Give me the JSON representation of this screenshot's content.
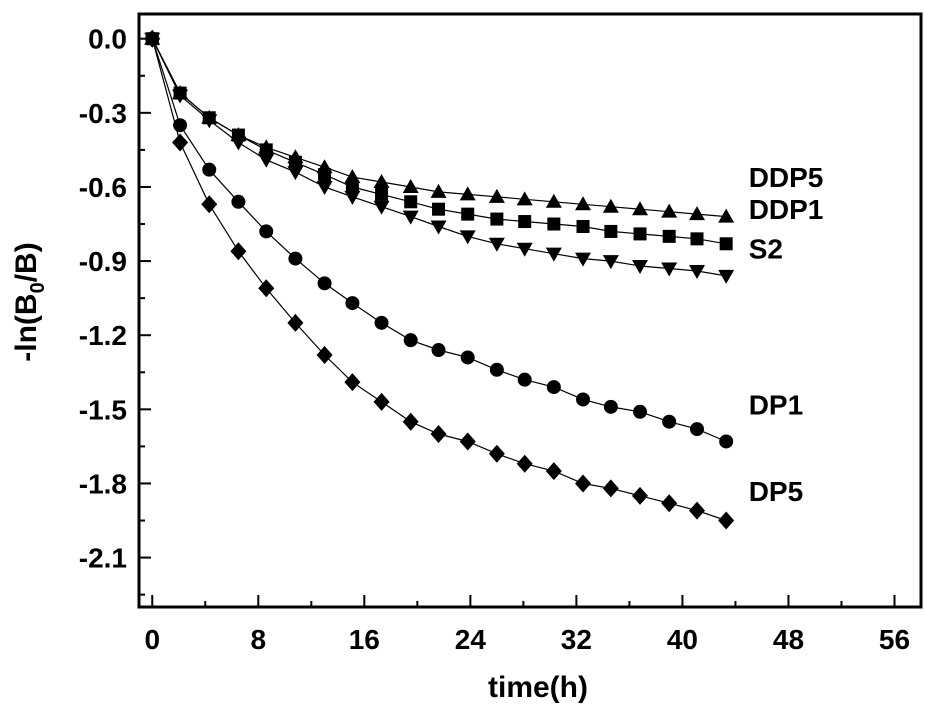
{
  "chart_data": {
    "type": "line",
    "xlabel": "time(h)",
    "ylabel_parts": {
      "prefix": "-ln(B",
      "sub": "0",
      "suffix": "/B)"
    },
    "xlim": [
      -1,
      58
    ],
    "ylim": [
      -2.3,
      0.1
    ],
    "xticks": [
      0,
      8,
      16,
      24,
      32,
      40,
      48,
      56
    ],
    "yticks": [
      0.0,
      -0.3,
      -0.6,
      -0.9,
      -1.2,
      -1.5,
      -1.8,
      -2.1
    ],
    "ytick_labels": [
      "0.0",
      "-0.3",
      "-0.6",
      "-0.9",
      "-1.2",
      "-1.5",
      "-1.8",
      "-2.1"
    ],
    "grid": false,
    "series": [
      {
        "name": "DDP5",
        "marker": "triangle-up",
        "x": [
          0,
          2.1,
          4.3,
          6.5,
          8.6,
          10.8,
          13,
          15.1,
          17.3,
          19.5,
          21.6,
          23.8,
          26,
          28.1,
          30.3,
          32.5,
          34.6,
          36.8,
          39,
          41.1,
          43.3
        ],
        "y": [
          0,
          -0.22,
          -0.32,
          -0.39,
          -0.44,
          -0.48,
          -0.52,
          -0.56,
          -0.58,
          -0.6,
          -0.62,
          -0.63,
          -0.64,
          -0.65,
          -0.66,
          -0.67,
          -0.68,
          -0.69,
          -0.7,
          -0.71,
          -0.72
        ]
      },
      {
        "name": "DDP1",
        "marker": "square",
        "x": [
          0,
          2.1,
          4.3,
          6.5,
          8.6,
          10.8,
          13,
          15.1,
          17.3,
          19.5,
          21.6,
          23.8,
          26,
          28.1,
          30.3,
          32.5,
          34.6,
          36.8,
          39,
          41.1,
          43.3
        ],
        "y": [
          0,
          -0.22,
          -0.32,
          -0.39,
          -0.45,
          -0.5,
          -0.55,
          -0.6,
          -0.63,
          -0.66,
          -0.69,
          -0.71,
          -0.73,
          -0.74,
          -0.75,
          -0.76,
          -0.78,
          -0.79,
          -0.8,
          -0.81,
          -0.83
        ]
      },
      {
        "name": "S2",
        "marker": "triangle-down",
        "x": [
          0,
          2.1,
          4.3,
          6.5,
          8.6,
          10.8,
          13,
          15.1,
          17.3,
          19.5,
          21.6,
          23.8,
          26,
          28.1,
          30.3,
          32.5,
          34.6,
          36.8,
          39,
          41.1,
          43.3
        ],
        "y": [
          0,
          -0.23,
          -0.33,
          -0.42,
          -0.49,
          -0.54,
          -0.6,
          -0.64,
          -0.68,
          -0.72,
          -0.76,
          -0.8,
          -0.83,
          -0.85,
          -0.87,
          -0.89,
          -0.9,
          -0.92,
          -0.93,
          -0.94,
          -0.96
        ]
      },
      {
        "name": "DP1",
        "marker": "circle",
        "x": [
          0,
          2.1,
          4.3,
          6.5,
          8.6,
          10.8,
          13,
          15.1,
          17.3,
          19.5,
          21.6,
          23.8,
          26,
          28.1,
          30.3,
          32.5,
          34.6,
          36.8,
          39,
          41.1,
          43.3
        ],
        "y": [
          0,
          -0.35,
          -0.53,
          -0.66,
          -0.78,
          -0.89,
          -0.99,
          -1.07,
          -1.15,
          -1.22,
          -1.26,
          -1.29,
          -1.34,
          -1.38,
          -1.41,
          -1.46,
          -1.49,
          -1.51,
          -1.55,
          -1.58,
          -1.63
        ]
      },
      {
        "name": "DP5",
        "marker": "diamond",
        "x": [
          0,
          2.1,
          4.3,
          6.5,
          8.6,
          10.8,
          13,
          15.1,
          17.3,
          19.5,
          21.6,
          23.8,
          26,
          28.1,
          30.3,
          32.5,
          34.6,
          36.8,
          39,
          41.1,
          43.3
        ],
        "y": [
          0,
          -0.42,
          -0.67,
          -0.86,
          -1.01,
          -1.15,
          -1.28,
          -1.39,
          -1.47,
          -1.55,
          -1.6,
          -1.63,
          -1.68,
          -1.72,
          -1.75,
          -1.8,
          -1.82,
          -1.85,
          -1.88,
          -1.91,
          -1.95
        ]
      }
    ],
    "series_labels": [
      {
        "text": "DDP5",
        "x": 45,
        "y": -0.56
      },
      {
        "text": "DDP1",
        "x": 45,
        "y": -0.69
      },
      {
        "text": "S2",
        "x": 45,
        "y": -0.85
      },
      {
        "text": "DP1",
        "x": 45,
        "y": -1.48
      },
      {
        "text": "DP5",
        "x": 45,
        "y": -1.83
      }
    ]
  }
}
